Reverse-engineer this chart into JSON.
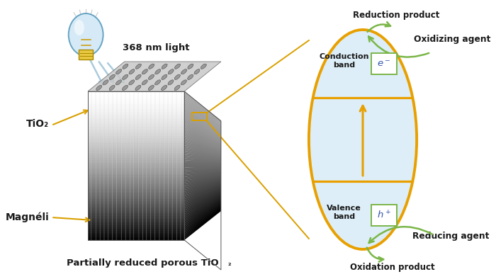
{
  "bg_color": "#ffffff",
  "orange_color": "#E8A000",
  "light_blue_fill": "#ddeef8",
  "green_color": "#7ab648",
  "yellow_color": "#DAA000",
  "arrow_blue": "#aaccdd",
  "text_color": "#1a1a1a",
  "italic_blue": "#3355aa",
  "box_border": "#7ab648",
  "label_light": "368 nm light",
  "label_TiO2": "TiO₂",
  "label_magneli": "Magnéli",
  "label_cb": "Conduction\nband",
  "label_vb": "Valence\nband",
  "label_ox_agent": "Oxidizing agent",
  "label_red_agent": "Reducing agent",
  "label_red_product": "Reduction product",
  "label_ox_product": "Oxidation product",
  "title_text": "Partially reduced porous TiO"
}
